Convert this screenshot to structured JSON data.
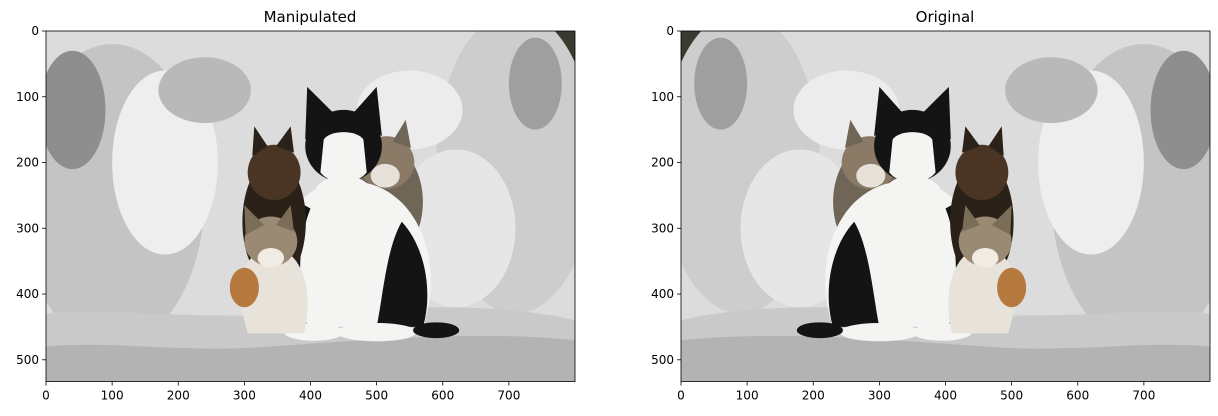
{
  "chart_data": [
    {
      "type": "image",
      "title": "Manipulated",
      "xlim": [
        0,
        800
      ],
      "ylim": [
        533,
        0
      ],
      "x_ticks": [
        0,
        100,
        200,
        300,
        400,
        500,
        600,
        700
      ],
      "y_ticks": [
        0,
        100,
        200,
        300,
        400,
        500
      ],
      "x_tick_labels": [
        "0",
        "100",
        "200",
        "300",
        "400",
        "500",
        "600",
        "700"
      ],
      "y_tick_labels": [
        "0",
        "100",
        "200",
        "300",
        "400",
        "500"
      ],
      "mirrored": true,
      "grid": false
    },
    {
      "type": "image",
      "title": "Original",
      "xlim": [
        0,
        800
      ],
      "ylim": [
        533,
        0
      ],
      "x_ticks": [
        0,
        100,
        200,
        300,
        400,
        500,
        600,
        700
      ],
      "y_ticks": [
        0,
        100,
        200,
        300,
        400,
        500
      ],
      "x_tick_labels": [
        "0",
        "100",
        "200",
        "300",
        "400",
        "500",
        "600",
        "700"
      ],
      "y_tick_labels": [
        "0",
        "100",
        "200",
        "300",
        "400",
        "500"
      ],
      "mirrored": false,
      "grid": false
    }
  ],
  "palette": {
    "wall_light": "#e8e8e8",
    "wall_mid": "#cfcfcf",
    "wall_shadow": "#a9a9a9",
    "cat_black": "#141414",
    "cat_white": "#f4f4f2",
    "cat_tabby": "#8a7a66",
    "cat_ginger": "#b5793e",
    "dark_corner": "#3b3a30"
  }
}
